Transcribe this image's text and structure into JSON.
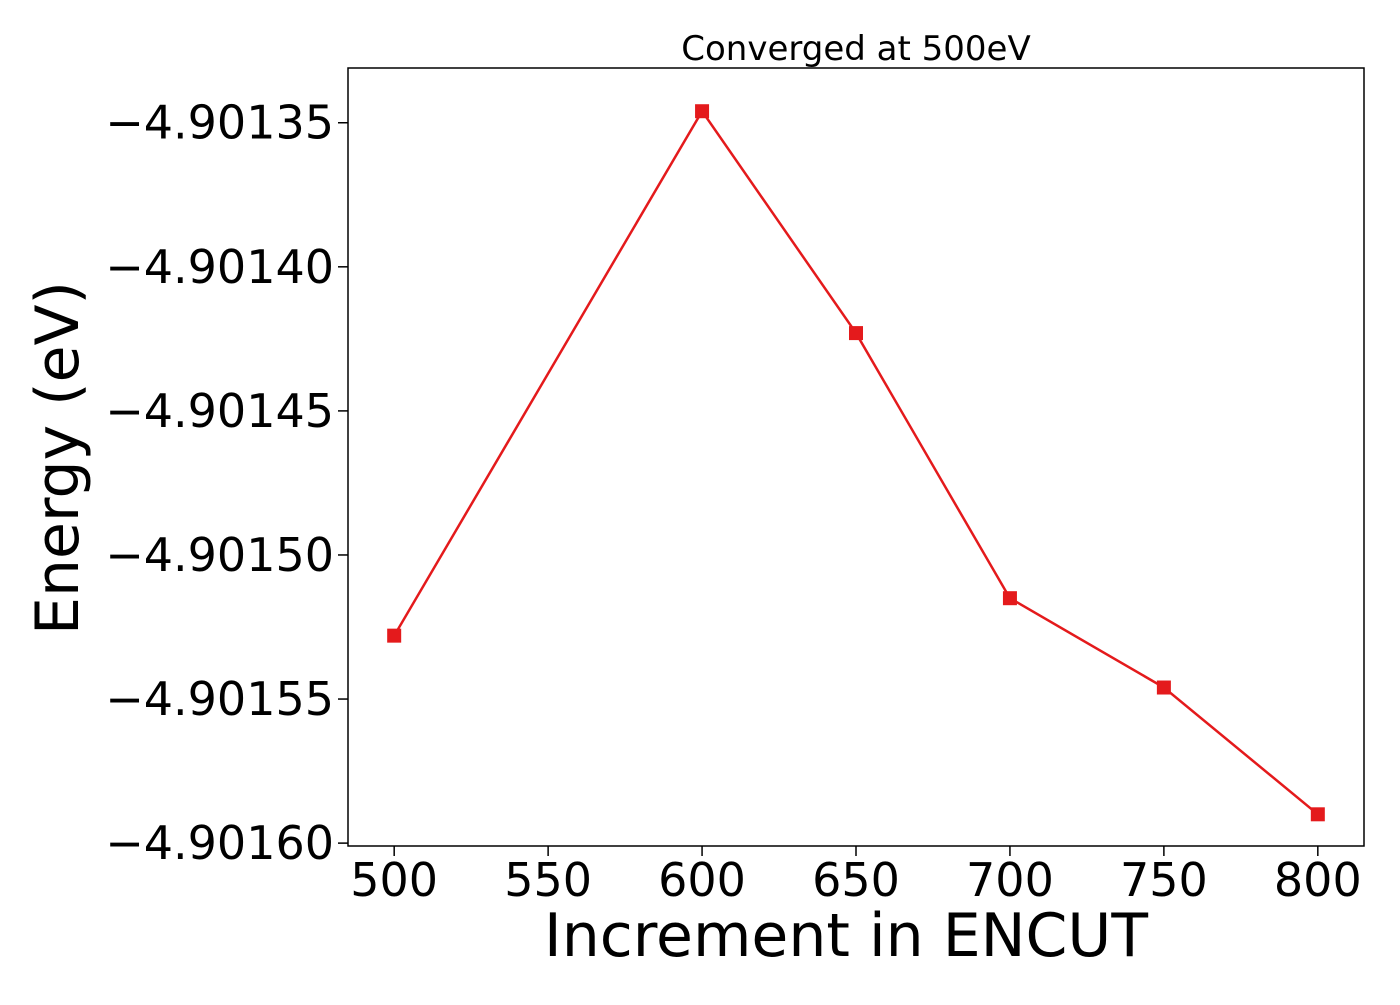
{
  "chart_data": {
    "type": "line",
    "title": "Converged at 500eV",
    "xlabel": "Increment in ENCUT",
    "ylabel": "Energy (eV)",
    "x": [
      500,
      600,
      650,
      700,
      750,
      800
    ],
    "series": [
      {
        "values": [
          -4.901528,
          -4.901346,
          -4.901423,
          -4.901515,
          -4.901546,
          -4.90159
        ],
        "color": "#e41a1c",
        "marker": "square"
      }
    ],
    "xticks": [
      500,
      550,
      600,
      650,
      700,
      750,
      800
    ],
    "xtick_labels": [
      "500",
      "550",
      "600",
      "650",
      "700",
      "750",
      "800"
    ],
    "yticks": [
      -4.9016,
      -4.90155,
      -4.9015,
      -4.90145,
      -4.9014,
      -4.90135
    ],
    "ytick_labels": [
      "−4.90160",
      "−4.90155",
      "−4.90150",
      "−4.90145",
      "−4.90140",
      "−4.90135"
    ],
    "xlim": [
      485,
      815
    ],
    "ylim": [
      -4.901601,
      -4.901331
    ],
    "grid": false,
    "legend": "none"
  }
}
